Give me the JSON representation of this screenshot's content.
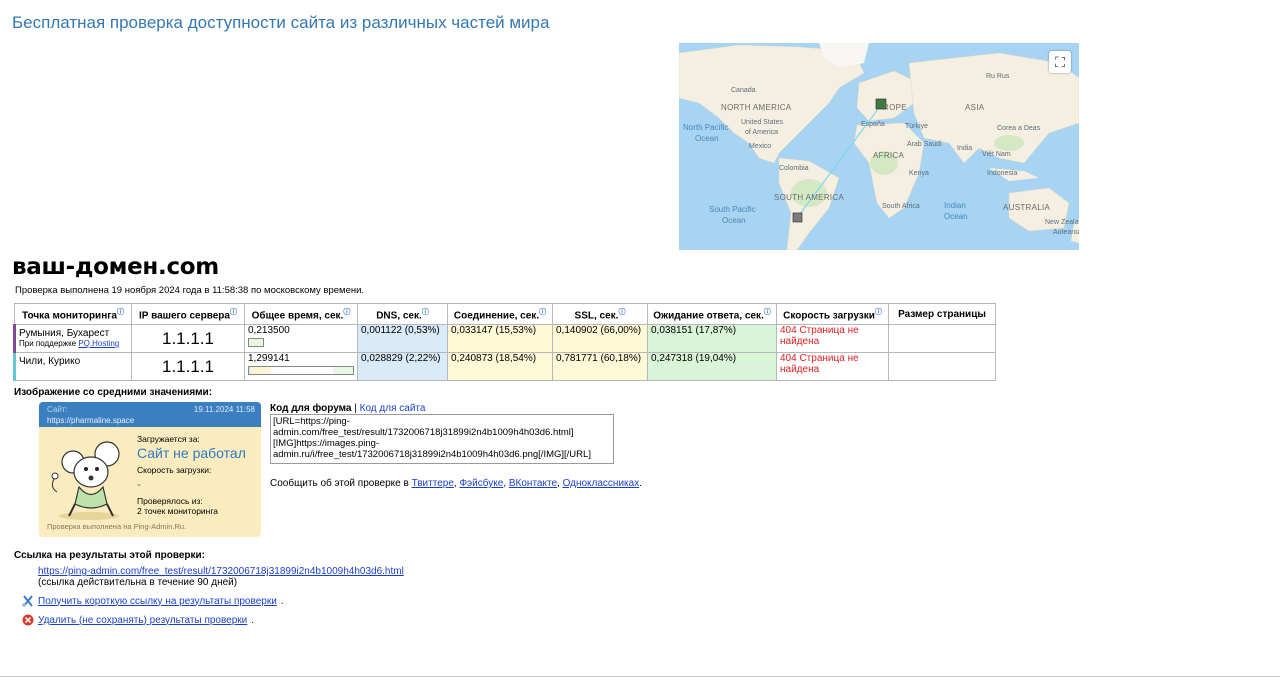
{
  "page": {
    "title": "Бесплатная проверка доступности сайта из различных частей мира",
    "domain": "ваш-домен.com",
    "check_time": "Проверка выполнена 19 ноября 2024 года в 11:58:38 по московскому времени."
  },
  "map": {
    "labels": [
      "NORTH AMERICA",
      "Canada",
      "United States of America",
      "Mexico",
      "North Pacific Ocean",
      "Colombia",
      "SOUTH AMERICA",
      "South Pacific Ocean",
      "ROPE",
      "España",
      "Türkiye",
      "ASIA",
      "Ru Rus",
      "AFRICA",
      "Arab Saudi",
      "India",
      "Việt Nam",
      "Corea a Deas",
      "Kenya",
      "Indonesia",
      "South Africa",
      "Indian Ocean",
      "AUSTRALIA",
      "New Zealand / Aotearoa"
    ],
    "land_color": "#f4efe0",
    "water_color": "#a6d4f2"
  },
  "table": {
    "headers": [
      "Точка мониторинга",
      "IP вашего сервера",
      "Общее время, сек.",
      "DNS, сек.",
      "Соединение, сек.",
      "SSL, сек.",
      "Ожидание ответа, сек.",
      "Скорость загрузки",
      "Размер страницы"
    ],
    "help_icon": "ⓘ",
    "rows": [
      {
        "location": "Румыния, Бухарест",
        "sub_prefix": "При поддержке ",
        "sub_link": "PQ.Hosting",
        "ip": "1.1.1.1",
        "total": "0,213500",
        "total_fraction": 0.164,
        "dns": "0,001122 (0,53%)",
        "connect": "0,033147 (15,53%)",
        "ssl": "0,140902 (66,00%)",
        "wait": "0,038151 (17,87%)",
        "speed": "404 Страница не найдена",
        "size": ""
      },
      {
        "location": "Чили, Курико",
        "sub_prefix": "",
        "sub_link": "",
        "ip": "1.1.1.1",
        "total": "1,299141",
        "total_fraction": 1.0,
        "dns": "0,028829 (2,22%)",
        "connect": "0,240873 (18,54%)",
        "ssl": "0,781771 (60,18%)",
        "wait": "0,247318 (19,04%)",
        "speed": "404 Страница не найдена",
        "size": ""
      }
    ]
  },
  "avg": {
    "heading": "Изображение со средними значениями:",
    "widget": {
      "site_label": "Сайт:",
      "date": "19.11.2024 11:58",
      "url": "https://pharmaline.space",
      "loading_label": "Загружается за:",
      "status": "Сайт не работал",
      "speed_label": "Скорость загрузки:",
      "speed": "-",
      "checked_label": "Проверялось из:",
      "checked_value": "2 точек мониторинга",
      "footer": "Проверка выполнена на Ping-Admin.Ru."
    }
  },
  "code": {
    "forum_label": "Код для форума",
    "separator": " | ",
    "site_label": "Код для сайта",
    "text": "[URL=https://ping-admin.com/free_test/result/1732006718j31899i2n4b1009h4h03d6.html][IMG]https://images.ping-admin.ru/i/free_test/1732006718j31899i2n4b1009h4h03d6.png[/IMG][/URL]"
  },
  "share": {
    "prefix": "Сообщить об этой проверке в ",
    "links": [
      "Твиттере",
      "Фэйсбуке",
      "ВКонтакте",
      "Одноклассниках"
    ],
    "suffix": "."
  },
  "result_link": {
    "heading": "Ссылка на результаты этой проверки:",
    "url": "https://ping-admin.com/free_test/result/1732006718j31899i2n4b1009h4h03d6.html",
    "note": "(ссылка действительна в течение 90 дней)",
    "short_link": "Получить короткую ссылку на результаты проверки",
    "delete_link": "Удалить (не сохранять) результаты проверки"
  },
  "colors": {
    "title": "#3478b4",
    "link": "#1a3fcb",
    "error": "#e02020",
    "dns_bg": "#d9ebf9",
    "connect_bg": "#fdf8d6",
    "wait_bg": "#d9f5d8"
  }
}
